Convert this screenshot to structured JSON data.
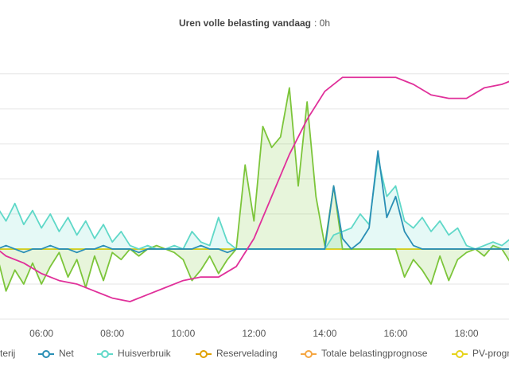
{
  "chart_data": {
    "type": "line",
    "title": "Uren volle belasting vandaag",
    "title_value": ": 0h",
    "x": [
      4.75,
      5,
      5.25,
      5.5,
      5.75,
      6,
      6.25,
      6.5,
      6.75,
      7,
      7.25,
      7.5,
      7.75,
      8,
      8.25,
      8.5,
      8.75,
      9,
      9.25,
      9.5,
      9.75,
      10,
      10.25,
      10.5,
      10.75,
      11,
      11.25,
      11.5,
      11.75,
      12,
      12.25,
      12.5,
      12.75,
      13,
      13.25,
      13.5,
      13.75,
      14,
      14.25,
      14.5,
      14.75,
      15,
      15.25,
      15.5,
      15.75,
      16,
      16.25,
      16.5,
      16.75,
      17,
      17.25,
      17.5,
      17.75,
      18,
      18.25,
      18.5,
      18.75,
      19,
      19.25
    ],
    "xlim": [
      4.83,
      19.2
    ],
    "xticks": [
      {
        "value": 6,
        "label": "06:00"
      },
      {
        "value": 8,
        "label": "08:00"
      },
      {
        "value": 10,
        "label": "10:00"
      },
      {
        "value": 12,
        "label": "12:00"
      },
      {
        "value": 14,
        "label": "14:00"
      },
      {
        "value": 16,
        "label": "16:00"
      },
      {
        "value": 18,
        "label": "18:00"
      }
    ],
    "ylim": [
      -2,
      5.45
    ],
    "yticks": [
      -2,
      -1,
      0,
      1,
      2,
      3,
      4,
      5
    ],
    "grid": true,
    "series": [
      {
        "name": "terij",
        "color": "#7cc53a",
        "fill": "rgba(124,197,58,0.18)",
        "values": [
          -0.2,
          -1.2,
          -0.6,
          -1.0,
          -0.4,
          -1.0,
          -0.5,
          -0.1,
          -0.8,
          -0.3,
          -1.1,
          -0.2,
          -0.9,
          -0.1,
          -0.3,
          0,
          -0.2,
          0,
          0.1,
          0,
          -0.1,
          -0.3,
          -0.9,
          -0.6,
          -0.2,
          -0.7,
          -0.3,
          0,
          2.4,
          0.8,
          3.5,
          2.9,
          3.2,
          4.6,
          1.8,
          4.2,
          1.5,
          0.1,
          1.8,
          0,
          0,
          0,
          0,
          0,
          0,
          0,
          -0.8,
          -0.3,
          -0.6,
          -1.0,
          -0.2,
          -0.9,
          -0.3,
          -0.1,
          0,
          -0.2,
          0.1,
          0,
          -0.4
        ]
      },
      {
        "name": "Net",
        "color": "#2a8fb5",
        "values": [
          0,
          0.1,
          0,
          -0.1,
          0,
          0,
          0.1,
          0,
          0,
          -0.1,
          0,
          0,
          0.1,
          0,
          0,
          0,
          -0.1,
          0,
          0,
          0,
          0,
          0,
          0,
          0.1,
          0,
          0,
          -0.1,
          0,
          0,
          0,
          0,
          0,
          0,
          0,
          0,
          0,
          0,
          0,
          1.8,
          0.3,
          0,
          0.2,
          0.6,
          2.8,
          0.9,
          1.5,
          0.5,
          0.1,
          0,
          0,
          0,
          0,
          0,
          0,
          0,
          0,
          0,
          0,
          0
        ]
      },
      {
        "name": "Huisverbruik",
        "color": "#5fd8c8",
        "fill": "rgba(95,216,200,0.16)",
        "values": [
          1.2,
          0.8,
          1.3,
          0.7,
          1.1,
          0.6,
          1.0,
          0.5,
          0.9,
          0.4,
          0.8,
          0.3,
          0.7,
          0.2,
          0.5,
          0.1,
          0,
          0.1,
          0,
          0,
          0.1,
          0,
          0.5,
          0.2,
          0.1,
          0.9,
          0.2,
          0,
          0,
          0,
          0,
          0,
          0,
          0,
          0,
          0,
          0,
          0,
          0.4,
          0.5,
          0.6,
          1.0,
          0.7,
          2.6,
          1.5,
          1.8,
          0.8,
          0.6,
          0.9,
          0.5,
          0.8,
          0.4,
          0.6,
          0.1,
          0,
          0.1,
          0.2,
          0.1,
          0.3
        ]
      },
      {
        "name": "Reservelading",
        "color": "#e0a100",
        "x": [
          4.75,
          19.25
        ],
        "values": [
          0,
          0
        ]
      },
      {
        "name": "Totale belastingprognose",
        "color": "#f5a642",
        "x": [
          4.75,
          19.25
        ],
        "values": [
          0,
          0
        ]
      },
      {
        "name": "PV-prognos",
        "color": "#e6d31c",
        "x": [
          4.75,
          19.25
        ],
        "values": [
          0,
          0
        ]
      },
      {
        "color": "#e0309a",
        "x": [
          4.75,
          5,
          5.5,
          6,
          6.5,
          7,
          7.5,
          8,
          8.5,
          9,
          9.5,
          10,
          10.5,
          11,
          11.5,
          12,
          12.5,
          13,
          13.5,
          14,
          14.5,
          15,
          16,
          16.5,
          17,
          17.5,
          18,
          18.5,
          19,
          19.25
        ],
        "values": [
          0,
          -0.2,
          -0.4,
          -0.7,
          -0.9,
          -1.0,
          -1.2,
          -1.4,
          -1.5,
          -1.3,
          -1.1,
          -0.9,
          -0.8,
          -0.8,
          -0.5,
          0.3,
          1.5,
          2.7,
          3.7,
          4.5,
          4.9,
          4.9,
          4.9,
          4.7,
          4.4,
          4.3,
          4.3,
          4.6,
          4.7,
          4.8
        ]
      }
    ]
  }
}
